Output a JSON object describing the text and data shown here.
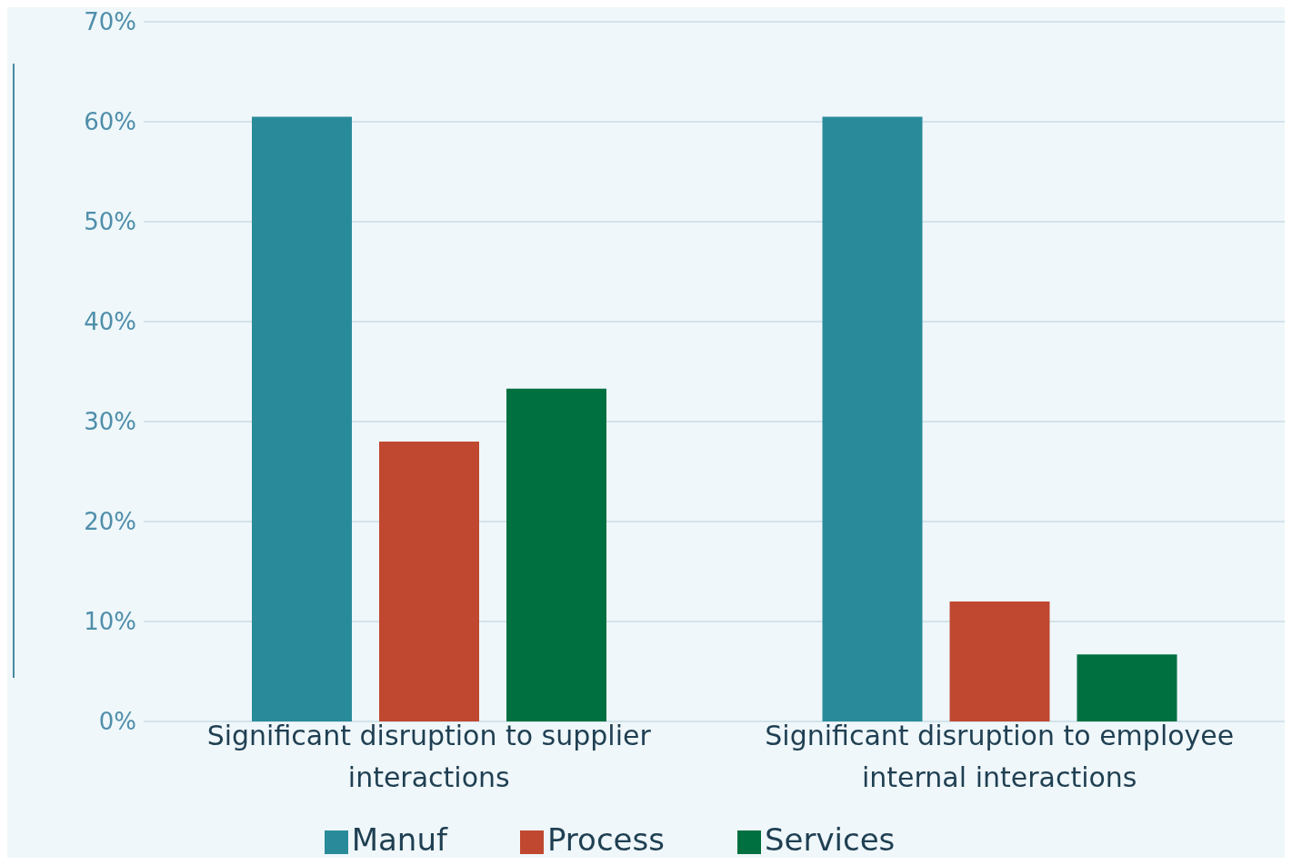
{
  "chart_data": {
    "type": "bar",
    "categories": [
      "Significant disruption to supplier interactions",
      "Significant disruption to employee internal interactions"
    ],
    "series": [
      {
        "name": "Manuf",
        "color": "#298b99",
        "values": [
          60.5,
          60.5
        ]
      },
      {
        "name": "Process",
        "color": "#c04830",
        "values": [
          28,
          12
        ]
      },
      {
        "name": "Services",
        "color": "#007040",
        "values": [
          33.3,
          6.7
        ]
      }
    ],
    "ylim": [
      0,
      70
    ],
    "yticks": [
      {
        "value": 0,
        "label": "0%"
      },
      {
        "value": 10,
        "label": "10%"
      },
      {
        "value": 20,
        "label": "20%"
      },
      {
        "value": 30,
        "label": "30%"
      },
      {
        "value": 40,
        "label": "40%"
      },
      {
        "value": 50,
        "label": "50%"
      },
      {
        "value": 60,
        "label": "60%"
      },
      {
        "value": 70,
        "label": "70%"
      }
    ],
    "grid": "y",
    "legend": "bottom"
  }
}
